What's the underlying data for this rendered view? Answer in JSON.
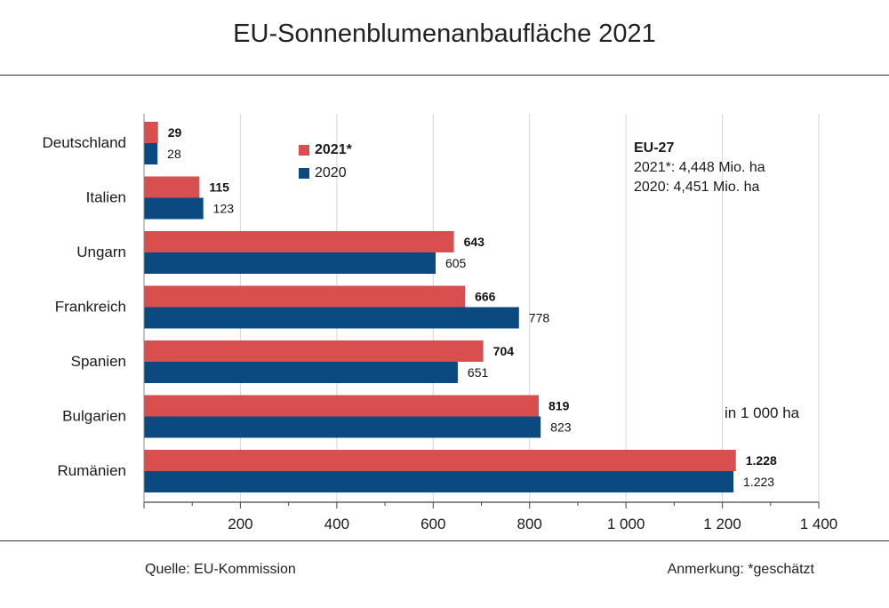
{
  "title": "EU-Sonnenblumenanbaufläche 2021",
  "chart_data": {
    "type": "bar",
    "orientation": "horizontal",
    "categories": [
      "Deutschland",
      "Italien",
      "Ungarn",
      "Frankreich",
      "Spanien",
      "Bulgarien",
      "Rumänien"
    ],
    "series": [
      {
        "name": "2021*",
        "color": "#d94f50",
        "values": [
          29,
          115,
          643,
          666,
          704,
          819,
          1228
        ],
        "labels": [
          "29",
          "115",
          "643",
          "666",
          "704",
          "819",
          "1.228"
        ]
      },
      {
        "name": "2020",
        "color": "#0b4a80",
        "values": [
          28,
          123,
          605,
          778,
          651,
          823,
          1223
        ],
        "labels": [
          "28",
          "123",
          "605",
          "778",
          "651",
          "823",
          "1.223"
        ]
      }
    ],
    "xlim": [
      0,
      1400
    ],
    "xticks": [
      200,
      400,
      600,
      800,
      1000,
      1200,
      1400
    ],
    "xtick_labels": [
      "200",
      "400",
      "600",
      "800",
      "1 000",
      "1 200",
      "1 400"
    ],
    "grid": true,
    "legend_position": "top-left"
  },
  "unit_note": "in 1 000 ha",
  "eu_box": {
    "title": "EU-27",
    "line1": "2021*: 4,448 Mio. ha",
    "line2": "2020: 4,451 Mio. ha"
  },
  "legend": {
    "item1": "2021*",
    "item2": "2020"
  },
  "footer": {
    "source": "Quelle:  EU-Kommission",
    "note": "Anmerkung: *geschätzt"
  }
}
